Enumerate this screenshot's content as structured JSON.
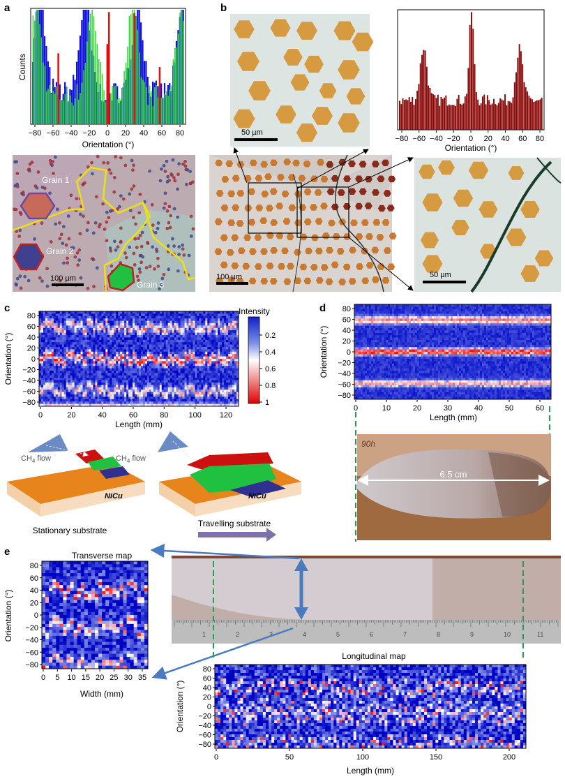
{
  "panel_letters": {
    "a": "a",
    "b": "b",
    "c": "c",
    "d": "d",
    "e": "e"
  },
  "colors": {
    "blue": "#1010e0",
    "green": "#22dd22",
    "red": "#dd1010",
    "darkred": "#8a0a0a",
    "hex_orange": "#d69a40",
    "arrow_blue": "#4a7ac0"
  },
  "panel_a": {
    "ylabel": "Counts",
    "xlabel": "Orientation (°)",
    "xticks": [
      "−80",
      "−60",
      "−40",
      "−20",
      "0",
      "20",
      "40",
      "60",
      "80"
    ],
    "micro_labels": {
      "grain1": "Grain 1",
      "grain2": "Grain 2",
      "grain3": "Grain 3",
      "scale": "100 µm"
    }
  },
  "panel_b": {
    "xlabel": "Orientation (°)",
    "xticks": [
      "−80",
      "−60",
      "−40",
      "−20",
      "0",
      "20",
      "40",
      "60",
      "80"
    ],
    "scales": {
      "top": "50 µm",
      "center": "100 µm",
      "right": "50 µm"
    }
  },
  "panel_c": {
    "ylabel": "Orientation (°)",
    "xlabel": "Length (mm)",
    "yticks": [
      "80",
      "60",
      "40",
      "20",
      "0",
      "−20",
      "−40",
      "−60",
      "−80"
    ],
    "xticks": [
      "0",
      "20",
      "40",
      "60",
      "80",
      "100",
      "120"
    ],
    "colorbar_title": "Intensity",
    "colorbar_ticks": [
      "0.2",
      "0.4",
      "0.6",
      "0.8",
      "1"
    ],
    "schematic": {
      "flow1": "CH",
      "flow2": "CH",
      "flow_sub": "4",
      "flow_word": " flow",
      "metal1": "NiCu",
      "metal2": "NiCu",
      "caption1": "Stationary substrate",
      "caption2": "Travelling substrate"
    }
  },
  "panel_d": {
    "ylabel": "Orientation (°)",
    "xlabel": "Length (mm)",
    "yticks": [
      "80",
      "60",
      "40",
      "20",
      "0",
      "−20",
      "−40",
      "−60",
      "−80"
    ],
    "xticks": [
      "0",
      "10",
      "20",
      "30",
      "40",
      "50",
      "60"
    ],
    "photo_note": "90h",
    "photo_length": "6.5 cm"
  },
  "panel_e": {
    "transverse_title": "Transverse map",
    "transverse_ylabel": "Orientation (°)",
    "transverse_xlabel": "Width (mm)",
    "transverse_yticks": [
      "80",
      "60",
      "40",
      "20",
      "0",
      "−20",
      "−40",
      "−60",
      "−80"
    ],
    "transverse_xticks": [
      "0",
      "5",
      "10",
      "15",
      "20",
      "25",
      "30",
      "35"
    ],
    "longitudinal_title": "Longitudinal map",
    "longitudinal_ylabel": "Orientation (°)",
    "longitudinal_xlabel": "Length (mm)",
    "longitudinal_yticks": [
      "80",
      "60",
      "40",
      "20",
      "0",
      "−20",
      "−40",
      "−60",
      "−80"
    ],
    "longitudinal_xticks": [
      "0",
      "50",
      "100",
      "150",
      "200"
    ],
    "ruler_numbers": [
      "1",
      "2",
      "3",
      "4",
      "5",
      "6",
      "7",
      "8",
      "9",
      "10",
      "11"
    ]
  }
}
